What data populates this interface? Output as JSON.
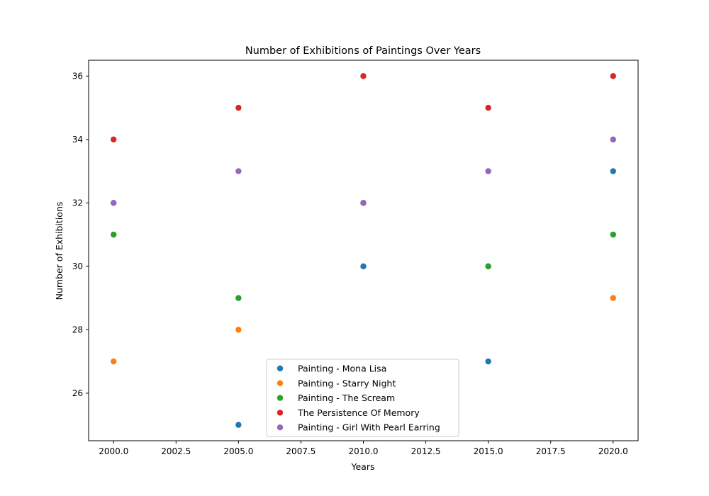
{
  "chart_data": {
    "type": "scatter",
    "title": "Number of Exhibitions of Paintings Over Years",
    "xlabel": "Years",
    "ylabel": "Number of Exhibitions",
    "xlim": [
      1999.0,
      2021.0
    ],
    "ylim": [
      24.5,
      36.5
    ],
    "x_ticks": [
      2000.0,
      2002.5,
      2005.0,
      2007.5,
      2010.0,
      2012.5,
      2015.0,
      2017.5,
      2020.0
    ],
    "x_tick_labels": [
      "2000.0",
      "2002.5",
      "2005.0",
      "2007.5",
      "2010.0",
      "2012.5",
      "2015.0",
      "2017.5",
      "2020.0"
    ],
    "y_ticks": [
      26,
      28,
      30,
      32,
      34,
      36
    ],
    "y_tick_labels": [
      "26",
      "28",
      "30",
      "32",
      "34",
      "36"
    ],
    "grid": false,
    "legend_position": "bottom-center",
    "x": [
      2000,
      2005,
      2010,
      2015,
      2020
    ],
    "series": [
      {
        "name": "Painting - Mona Lisa",
        "color": "#1f77b4",
        "values": [
          32,
          25,
          30,
          27,
          33
        ]
      },
      {
        "name": "Painting - Starry Night",
        "color": "#ff7f0e",
        "values": [
          27,
          28,
          32,
          30,
          29
        ]
      },
      {
        "name": "Painting - The Scream",
        "color": "#2ca02c",
        "values": [
          31,
          29,
          32,
          30,
          31
        ]
      },
      {
        "name": "The Persistence Of Memory",
        "color": "#d62728",
        "values": [
          34,
          35,
          36,
          35,
          36
        ]
      },
      {
        "name": "Painting - Girl With Pearl Earring",
        "color": "#9467bd",
        "values": [
          32,
          33,
          32,
          33,
          34
        ]
      }
    ]
  }
}
